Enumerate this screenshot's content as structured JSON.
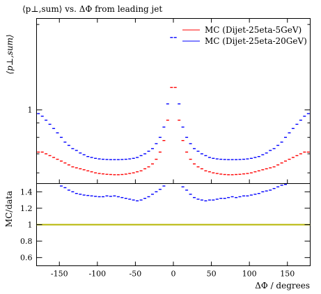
{
  "chart_data": [
    {
      "type": "scatter",
      "title": "⟨p⊥,sum⟩ vs. ΔΦ from leading jet",
      "ylabel": "⟨p⊥,sum⟩",
      "xlabel": "",
      "scale": "log",
      "xlim": [
        -180,
        180
      ],
      "ylim": [
        0.55,
        2.1
      ],
      "yticks": [
        {
          "value": 1,
          "label": "1"
        }
      ],
      "legend_position": "top-right",
      "series": [
        {
          "name": "MC (Dijet-25eta-5GeV)",
          "color": "#ff0000",
          "x": [
            -177.5,
            -172.5,
            -167.5,
            -162.5,
            -157.5,
            -152.5,
            -147.5,
            -142.5,
            -137.5,
            -132.5,
            -127.5,
            -122.5,
            -117.5,
            -112.5,
            -107.5,
            -102.5,
            -97.5,
            -92.5,
            -87.5,
            -82.5,
            -77.5,
            -72.5,
            -67.5,
            -62.5,
            -57.5,
            -52.5,
            -47.5,
            -42.5,
            -37.5,
            -32.5,
            -27.5,
            -22.5,
            -17.5,
            -12.5,
            -7.5,
            -2.5,
            2.5,
            7.5,
            12.5,
            17.5,
            22.5,
            27.5,
            32.5,
            37.5,
            42.5,
            47.5,
            52.5,
            57.5,
            62.5,
            67.5,
            72.5,
            77.5,
            82.5,
            87.5,
            92.5,
            97.5,
            102.5,
            107.5,
            112.5,
            117.5,
            122.5,
            127.5,
            132.5,
            137.5,
            142.5,
            147.5,
            152.5,
            157.5,
            162.5,
            167.5,
            172.5,
            177.5
          ],
          "y": [
            0.71,
            0.71,
            0.7,
            0.69,
            0.68,
            0.67,
            0.66,
            0.65,
            0.64,
            0.63,
            0.625,
            0.62,
            0.615,
            0.61,
            0.605,
            0.6,
            0.597,
            0.595,
            0.593,
            0.592,
            0.591,
            0.591,
            0.592,
            0.594,
            0.597,
            0.6,
            0.605,
            0.61,
            0.62,
            0.63,
            0.645,
            0.67,
            0.71,
            0.78,
            0.92,
            1.2,
            1.2,
            0.92,
            0.78,
            0.71,
            0.67,
            0.645,
            0.63,
            0.62,
            0.61,
            0.605,
            0.6,
            0.597,
            0.594,
            0.592,
            0.591,
            0.591,
            0.592,
            0.593,
            0.595,
            0.597,
            0.6,
            0.605,
            0.61,
            0.615,
            0.62,
            0.625,
            0.63,
            0.64,
            0.65,
            0.66,
            0.67,
            0.68,
            0.69,
            0.7,
            0.71,
            0.71
          ]
        },
        {
          "name": "MC (Dijet-25eta-20GeV)",
          "color": "#0000ff",
          "x": [
            -177.5,
            -172.5,
            -167.5,
            -162.5,
            -157.5,
            -152.5,
            -147.5,
            -142.5,
            -137.5,
            -132.5,
            -127.5,
            -122.5,
            -117.5,
            -112.5,
            -107.5,
            -102.5,
            -97.5,
            -92.5,
            -87.5,
            -82.5,
            -77.5,
            -72.5,
            -67.5,
            -62.5,
            -57.5,
            -52.5,
            -47.5,
            -42.5,
            -37.5,
            -32.5,
            -27.5,
            -22.5,
            -17.5,
            -12.5,
            -7.5,
            -2.5,
            2.5,
            7.5,
            12.5,
            17.5,
            22.5,
            27.5,
            32.5,
            37.5,
            42.5,
            47.5,
            52.5,
            57.5,
            62.5,
            67.5,
            72.5,
            77.5,
            82.5,
            87.5,
            92.5,
            97.5,
            102.5,
            107.5,
            112.5,
            117.5,
            122.5,
            127.5,
            132.5,
            137.5,
            142.5,
            147.5,
            152.5,
            157.5,
            162.5,
            167.5,
            172.5,
            177.5
          ],
          "y": [
            0.97,
            0.95,
            0.92,
            0.89,
            0.86,
            0.83,
            0.8,
            0.77,
            0.75,
            0.73,
            0.72,
            0.705,
            0.695,
            0.685,
            0.68,
            0.675,
            0.672,
            0.67,
            0.669,
            0.668,
            0.668,
            0.668,
            0.669,
            0.67,
            0.672,
            0.675,
            0.68,
            0.69,
            0.7,
            0.715,
            0.73,
            0.76,
            0.8,
            0.87,
            1.05,
            1.8,
            1.8,
            1.05,
            0.87,
            0.8,
            0.76,
            0.73,
            0.715,
            0.7,
            0.69,
            0.68,
            0.675,
            0.672,
            0.67,
            0.669,
            0.668,
            0.668,
            0.668,
            0.669,
            0.67,
            0.672,
            0.675,
            0.68,
            0.685,
            0.695,
            0.705,
            0.72,
            0.73,
            0.75,
            0.77,
            0.8,
            0.83,
            0.86,
            0.89,
            0.92,
            0.95,
            0.97
          ]
        }
      ]
    },
    {
      "type": "scatter",
      "ylabel": "MC/data",
      "xlabel": "ΔΦ / degrees",
      "xlim": [
        -180,
        180
      ],
      "ylim": [
        0.5,
        1.5
      ],
      "xticks": [
        {
          "value": -150,
          "label": "-150"
        },
        {
          "value": -100,
          "label": "-100"
        },
        {
          "value": -50,
          "label": "-50"
        },
        {
          "value": 0,
          "label": "0"
        },
        {
          "value": 50,
          "label": "50"
        },
        {
          "value": 100,
          "label": "100"
        },
        {
          "value": 150,
          "label": "150"
        }
      ],
      "yticks": [
        {
          "value": 0.6,
          "label": "0.6"
        },
        {
          "value": 0.8,
          "label": "0.8"
        },
        {
          "value": 1,
          "label": "1"
        },
        {
          "value": 1.2,
          "label": "1.2"
        },
        {
          "value": 1.4,
          "label": "1.4"
        }
      ],
      "reference_line": {
        "y": 1,
        "color": "#b5b500"
      },
      "series": [
        {
          "name": "MC (Dijet-25eta-20GeV)",
          "color": "#0000ff",
          "x": [
            -147.5,
            -142.5,
            -137.5,
            -132.5,
            -127.5,
            -122.5,
            -117.5,
            -112.5,
            -107.5,
            -102.5,
            -97.5,
            -92.5,
            -87.5,
            -82.5,
            -77.5,
            -72.5,
            -67.5,
            -62.5,
            -57.5,
            -52.5,
            -47.5,
            -42.5,
            -37.5,
            -32.5,
            -27.5,
            -22.5,
            -17.5,
            -12.5,
            12.5,
            17.5,
            22.5,
            27.5,
            32.5,
            37.5,
            42.5,
            47.5,
            52.5,
            57.5,
            62.5,
            67.5,
            72.5,
            77.5,
            82.5,
            87.5,
            92.5,
            97.5,
            102.5,
            107.5,
            112.5,
            117.5,
            122.5,
            127.5,
            132.5,
            137.5,
            142.5,
            147.5
          ],
          "y": [
            1.47,
            1.45,
            1.42,
            1.4,
            1.38,
            1.37,
            1.36,
            1.355,
            1.35,
            1.345,
            1.34,
            1.34,
            1.35,
            1.345,
            1.35,
            1.34,
            1.33,
            1.32,
            1.31,
            1.3,
            1.29,
            1.3,
            1.32,
            1.34,
            1.37,
            1.4,
            1.43,
            1.47,
            1.46,
            1.42,
            1.37,
            1.33,
            1.31,
            1.3,
            1.29,
            1.3,
            1.3,
            1.31,
            1.32,
            1.32,
            1.33,
            1.34,
            1.33,
            1.34,
            1.35,
            1.35,
            1.36,
            1.37,
            1.38,
            1.4,
            1.41,
            1.42,
            1.44,
            1.46,
            1.48,
            1.49
          ]
        }
      ]
    }
  ]
}
